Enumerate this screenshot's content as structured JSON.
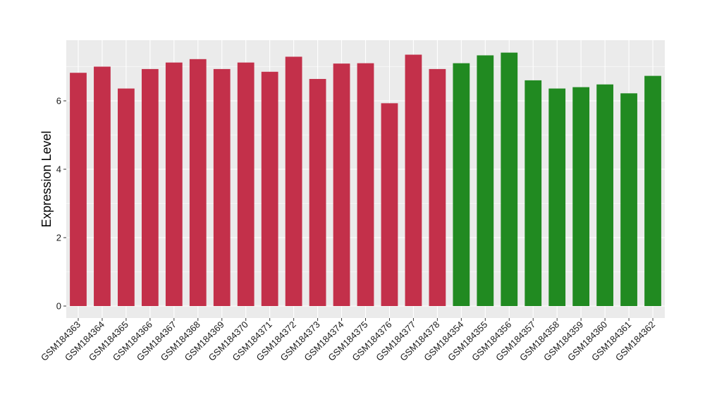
{
  "chart_data": {
    "type": "bar",
    "title": "",
    "xlabel": "",
    "ylabel": "Expression Level",
    "ylim": [
      0,
      7.75
    ],
    "yticks": [
      0,
      2,
      4,
      6
    ],
    "ytick_labels": [
      "0",
      "2",
      "4",
      "6"
    ],
    "grid": true,
    "legend": "none",
    "colors": {
      "group1": "#c3304a",
      "group2": "#218a21",
      "panel": "#ebebeb",
      "grid": "#ffffff"
    },
    "categories": [
      "GSM184363",
      "GSM184364",
      "GSM184365",
      "GSM184366",
      "GSM184367",
      "GSM184368",
      "GSM184369",
      "GSM184370",
      "GSM184371",
      "GSM184372",
      "GSM184373",
      "GSM184374",
      "GSM184375",
      "GSM184376",
      "GSM184377",
      "GSM184378",
      "GSM184354",
      "GSM184355",
      "GSM184356",
      "GSM184357",
      "GSM184358",
      "GSM184359",
      "GSM184360",
      "GSM184361",
      "GSM184362"
    ],
    "values": [
      6.82,
      7.0,
      6.36,
      6.93,
      7.12,
      7.22,
      6.93,
      7.12,
      6.85,
      7.29,
      6.64,
      7.09,
      7.1,
      5.93,
      7.35,
      6.93,
      7.1,
      7.33,
      7.41,
      6.6,
      6.36,
      6.4,
      6.48,
      6.22,
      6.73
    ],
    "groups": [
      1,
      1,
      1,
      1,
      1,
      1,
      1,
      1,
      1,
      1,
      1,
      1,
      1,
      1,
      1,
      1,
      2,
      2,
      2,
      2,
      2,
      2,
      2,
      2,
      2
    ]
  }
}
